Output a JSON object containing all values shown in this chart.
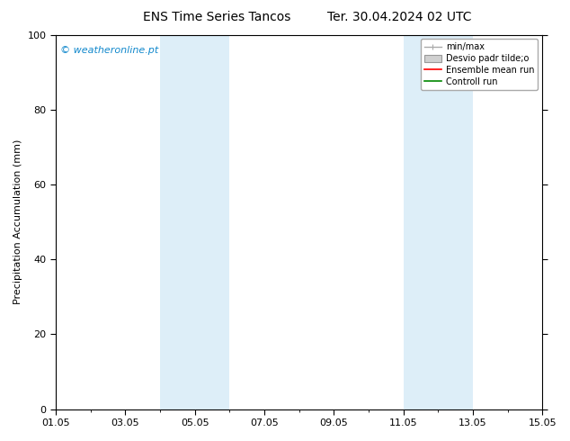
{
  "title_left": "ENS Time Series Tancos",
  "title_right": "Ter. 30.04.2024 02 UTC",
  "ylabel": "Precipitation Accumulation (mm)",
  "ylim": [
    0,
    100
  ],
  "yticks": [
    0,
    20,
    40,
    60,
    80,
    100
  ],
  "xtick_labels": [
    "01.05",
    "03.05",
    "05.05",
    "07.05",
    "09.05",
    "11.05",
    "13.05",
    "15.05"
  ],
  "xtick_positions_days": [
    0,
    2,
    4,
    6,
    8,
    10,
    12,
    14
  ],
  "x_start": 0,
  "x_end": 14,
  "shaded_bands": [
    {
      "start_day": 3.0,
      "end_day": 5.0
    },
    {
      "start_day": 10.0,
      "end_day": 12.0
    }
  ],
  "band_color": "#ddeef8",
  "watermark_text": "© weatheronline.pt",
  "watermark_color": "#1188cc",
  "legend_labels": [
    "min/max",
    "Desvio padr tilde;o",
    "Ensemble mean run",
    "Controll run"
  ],
  "legend_handle_colors": [
    "#aaaaaa",
    "#cccccc",
    "#ff0000",
    "#008800"
  ],
  "bg_color": "#ffffff",
  "title_fontsize": 10,
  "label_fontsize": 8,
  "tick_fontsize": 8,
  "watermark_fontsize": 8,
  "legend_fontsize": 7
}
